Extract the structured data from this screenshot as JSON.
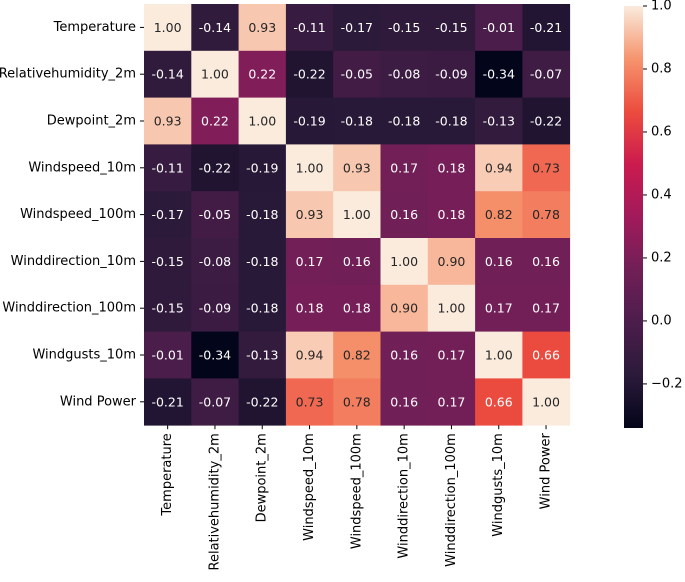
{
  "chart_data": {
    "type": "heatmap",
    "title": "",
    "xlabel": "",
    "ylabel": "",
    "variables": [
      "Temperature",
      "Relativehumidity_2m",
      "Dewpoint_2m",
      "Windspeed_10m",
      "Windspeed_100m",
      "Winddirection_10m",
      "Winddirection_100m",
      "Windgusts_10m",
      "Wind Power"
    ],
    "values": [
      [
        1.0,
        -0.14,
        0.93,
        -0.11,
        -0.17,
        -0.15,
        -0.15,
        -0.01,
        -0.21
      ],
      [
        -0.14,
        1.0,
        0.22,
        -0.22,
        -0.05,
        -0.08,
        -0.09,
        -0.34,
        -0.07
      ],
      [
        0.93,
        0.22,
        1.0,
        -0.19,
        -0.18,
        -0.18,
        -0.18,
        -0.13,
        -0.22
      ],
      [
        -0.11,
        -0.22,
        -0.19,
        1.0,
        0.93,
        0.17,
        0.18,
        0.94,
        0.73
      ],
      [
        -0.17,
        -0.05,
        -0.18,
        0.93,
        1.0,
        0.16,
        0.18,
        0.82,
        0.78
      ],
      [
        -0.15,
        -0.08,
        -0.18,
        0.17,
        0.16,
        1.0,
        0.9,
        0.16,
        0.16
      ],
      [
        -0.15,
        -0.09,
        -0.18,
        0.18,
        0.18,
        0.9,
        1.0,
        0.17,
        0.17
      ],
      [
        -0.01,
        -0.34,
        -0.13,
        0.94,
        0.82,
        0.16,
        0.17,
        1.0,
        0.66
      ],
      [
        -0.21,
        -0.07,
        -0.22,
        0.73,
        0.78,
        0.16,
        0.17,
        0.66,
        1.0
      ]
    ],
    "annotation_format": "0.00",
    "colormap": "rocket",
    "colorbar": {
      "range": [
        -0.34,
        1.0
      ],
      "ticks": [
        1.0,
        0.8,
        0.6,
        0.4,
        0.2,
        0.0,
        -0.2
      ],
      "tick_labels": [
        "1.0",
        "0.8",
        "0.6",
        "0.4",
        "0.2",
        "0.0",
        "−0.2"
      ]
    },
    "grid": false,
    "legend": "colorbar-right"
  }
}
